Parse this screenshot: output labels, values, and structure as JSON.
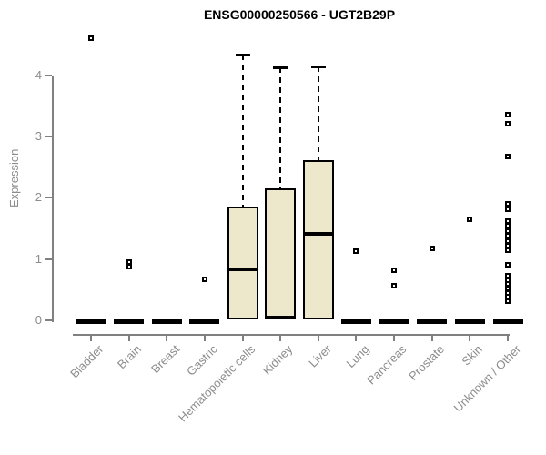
{
  "title": "ENSG00000250566 - UGT2B29P",
  "y_axis": {
    "label": "Expression"
  },
  "colors": {
    "box_fill": "#ede7cb",
    "box_border": "#000000",
    "axis_line": "#808080",
    "tick_label": "#8c8c8c",
    "title_text": "#000000"
  },
  "chart_data": {
    "type": "boxplot",
    "title": "ENSG00000250566 - UGT2B29P",
    "xlabel": "",
    "ylabel": "Expression",
    "ylim": [
      0,
      4.7
    ],
    "y_ticks": [
      0,
      1,
      2,
      3,
      4
    ],
    "grid": false,
    "legend": false,
    "categories": [
      "Bladder",
      "Brain",
      "Breast",
      "Gastric",
      "Hematopoietic cells",
      "Kidney",
      "Liver",
      "Lung",
      "Pancreas",
      "Prostate",
      "Skin",
      "Unknown / Other"
    ],
    "boxes": [
      {
        "category": "Bladder",
        "low": 0,
        "q1": 0,
        "median": 0,
        "q3": 0,
        "high": 0,
        "outliers": [
          4.61
        ]
      },
      {
        "category": "Brain",
        "low": 0,
        "q1": 0,
        "median": 0,
        "q3": 0,
        "high": 0,
        "outliers": [
          0.95,
          0.87
        ]
      },
      {
        "category": "Breast",
        "low": 0,
        "q1": 0,
        "median": 0,
        "q3": 0,
        "high": 0,
        "outliers": []
      },
      {
        "category": "Gastric",
        "low": 0,
        "q1": 0,
        "median": 0,
        "q3": 0,
        "high": 0,
        "outliers": [
          0.67
        ]
      },
      {
        "category": "Hematopoietic cells",
        "low": 0,
        "q1": 0.02,
        "median": 0.83,
        "q3": 1.86,
        "high": 4.34,
        "outliers": []
      },
      {
        "category": "Kidney",
        "low": 0,
        "q1": 0.02,
        "median": 0.04,
        "q3": 2.15,
        "high": 4.13,
        "outliers": []
      },
      {
        "category": "Liver",
        "low": 0,
        "q1": 0.02,
        "median": 1.41,
        "q3": 2.62,
        "high": 4.15,
        "outliers": []
      },
      {
        "category": "Lung",
        "low": 0,
        "q1": 0,
        "median": 0,
        "q3": 0,
        "high": 0,
        "outliers": [
          1.13
        ]
      },
      {
        "category": "Pancreas",
        "low": 0,
        "q1": 0,
        "median": 0,
        "q3": 0,
        "high": 0,
        "outliers": [
          0.82,
          0.56
        ]
      },
      {
        "category": "Prostate",
        "low": 0,
        "q1": 0,
        "median": 0,
        "q3": 0,
        "high": 0,
        "outliers": [
          1.17
        ]
      },
      {
        "category": "Skin",
        "low": 0,
        "q1": 0,
        "median": 0,
        "q3": 0,
        "high": 0,
        "outliers": [
          1.65
        ]
      },
      {
        "category": "Unknown / Other",
        "low": 0,
        "q1": 0,
        "median": 0,
        "q3": 0,
        "high": 0,
        "outliers": [
          3.36,
          3.21,
          2.67,
          1.9,
          1.81,
          1.62,
          1.54,
          1.46,
          1.38,
          1.3,
          1.22,
          1.14,
          0.91,
          0.73,
          0.66,
          0.59,
          0.52,
          0.45,
          0.38,
          0.31
        ]
      }
    ]
  }
}
